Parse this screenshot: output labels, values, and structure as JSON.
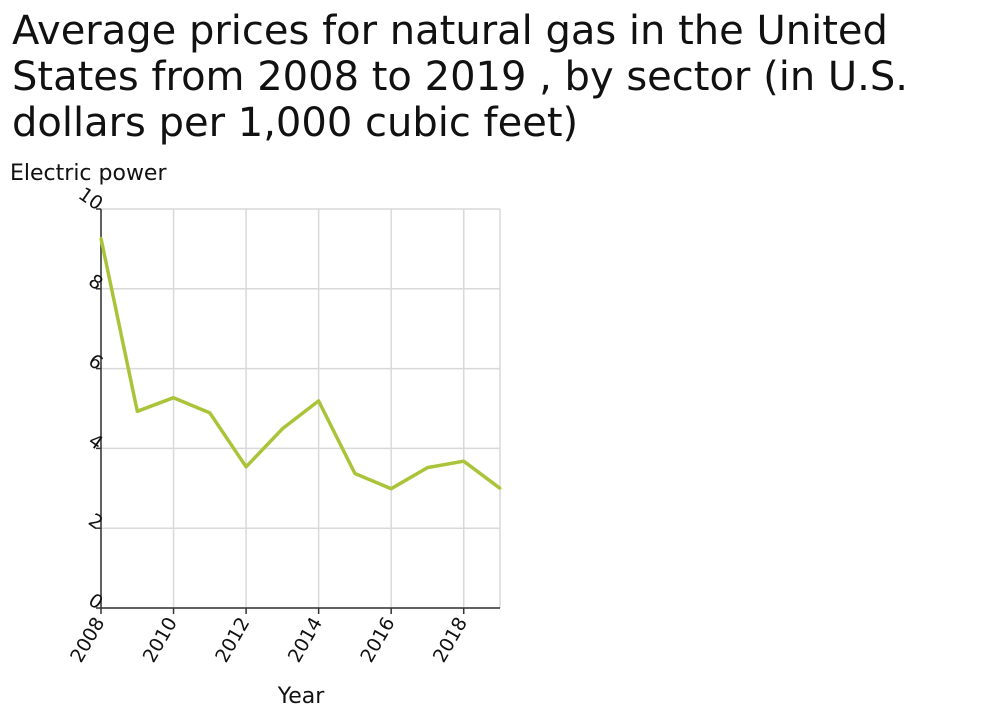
{
  "chart_data": {
    "type": "line",
    "title": "Average prices for natural gas in the United States from 2008 to 2019 , by sector (in U.S. dollars per 1,000 cubic feet)",
    "xlabel": "Year",
    "ylabel": "Electric power",
    "xlim": [
      2008,
      2019
    ],
    "ylim": [
      0,
      10
    ],
    "x_ticks": [
      2008,
      2010,
      2012,
      2014,
      2016,
      2018
    ],
    "y_ticks": [
      0,
      2,
      4,
      6,
      8,
      10
    ],
    "grid": true,
    "series": [
      {
        "color": "#aac43a",
        "x": [
          2008,
          2009,
          2010,
          2011,
          2012,
          2013,
          2014,
          2015,
          2016,
          2017,
          2018,
          2019
        ],
        "values": [
          9.26,
          4.93,
          5.27,
          4.89,
          3.54,
          4.49,
          5.19,
          3.37,
          2.99,
          3.52,
          3.68,
          3.0
        ]
      }
    ]
  }
}
